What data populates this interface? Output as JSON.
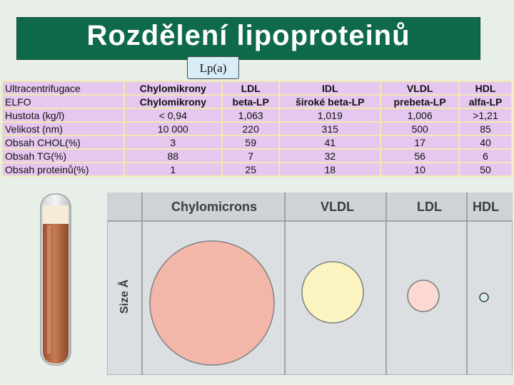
{
  "slide": {
    "title": "Rozdělení lipoproteinů",
    "callout": "Lp(a)"
  },
  "table": {
    "rows": [
      {
        "label": "Ultracentrifugace",
        "cells": [
          "Chylomikrony",
          "LDL",
          "IDL",
          "VLDL",
          "HDL"
        ]
      },
      {
        "label": "ELFO",
        "cells": [
          "Chylomikrony",
          "beta-LP",
          "široké beta-LP",
          "prebeta-LP",
          "alfa-LP"
        ]
      },
      {
        "label": "Hustota (kg/l)",
        "cells": [
          "< 0,94",
          "1,063",
          "1,019",
          "1,006",
          ">1,21"
        ]
      },
      {
        "label": "Velikost (nm)",
        "cells": [
          "10 000",
          "220",
          "315",
          "500",
          "85"
        ]
      },
      {
        "label": "Obsah CHOL(%)",
        "cells": [
          "3",
          "59",
          "41",
          "17",
          "40"
        ]
      },
      {
        "label": "Obsah TG(%)",
        "cells": [
          "88",
          "7",
          "32",
          "56",
          "6"
        ]
      },
      {
        "label": "Obsah proteinů(%)",
        "cells": [
          "1",
          "25",
          "18",
          "10",
          "50"
        ]
      }
    ]
  },
  "diagram": {
    "columns": [
      "Chylomicrons",
      "VLDL",
      "LDL",
      "HDL"
    ],
    "axis_label": "Size Å",
    "colors": {
      "chylomicron": "#f3b7aa",
      "vldl": "#fbf3c0",
      "ldl": "#fbd9d2",
      "hdl": "#d6ecf0"
    }
  },
  "tube": {
    "plasma_color": "#c0714a",
    "cream_color": "#f6ead8"
  }
}
